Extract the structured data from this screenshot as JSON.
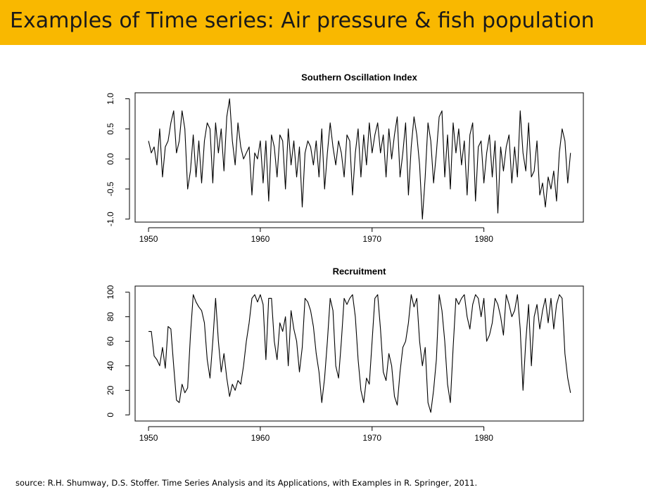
{
  "slide_title": "Examples of Time series: Air pressure & fish population",
  "source": "source: R.H. Shumway, D.S. Stoffer. Time Series Analysis and its Applications, with Examples in R. Springer, 2011.",
  "chart_data": [
    {
      "type": "line",
      "title": "Southern Oscillation Index",
      "color": "#000000",
      "x": [
        1950,
        1950.25,
        1950.5,
        1950.75,
        1951,
        1951.25,
        1951.5,
        1951.75,
        1952,
        1952.25,
        1952.5,
        1952.75,
        1953,
        1953.25,
        1953.5,
        1953.75,
        1954,
        1954.25,
        1954.5,
        1954.75,
        1955,
        1955.25,
        1955.5,
        1955.75,
        1956,
        1956.25,
        1956.5,
        1956.75,
        1957,
        1957.25,
        1957.5,
        1957.75,
        1958,
        1958.25,
        1958.5,
        1958.75,
        1959,
        1959.25,
        1959.5,
        1959.75,
        1960,
        1960.25,
        1960.5,
        1960.75,
        1961,
        1961.25,
        1961.5,
        1961.75,
        1962,
        1962.25,
        1962.5,
        1962.75,
        1963,
        1963.25,
        1963.5,
        1963.75,
        1964,
        1964.25,
        1964.5,
        1964.75,
        1965,
        1965.25,
        1965.5,
        1965.75,
        1966,
        1966.25,
        1966.5,
        1966.75,
        1967,
        1967.25,
        1967.5,
        1967.75,
        1968,
        1968.25,
        1968.5,
        1968.75,
        1969,
        1969.25,
        1969.5,
        1969.75,
        1970,
        1970.25,
        1970.5,
        1970.75,
        1971,
        1971.25,
        1971.5,
        1971.75,
        1972,
        1972.25,
        1972.5,
        1972.75,
        1973,
        1973.25,
        1973.5,
        1973.75,
        1974,
        1974.25,
        1974.5,
        1974.75,
        1975,
        1975.25,
        1975.5,
        1975.75,
        1976,
        1976.25,
        1976.5,
        1976.75,
        1977,
        1977.25,
        1977.5,
        1977.75,
        1978,
        1978.25,
        1978.5,
        1978.75,
        1979,
        1979.25,
        1979.5,
        1979.75,
        1980,
        1980.25,
        1980.5,
        1980.75,
        1981,
        1981.25,
        1981.5,
        1981.75,
        1982,
        1982.25,
        1982.5,
        1982.75,
        1983,
        1983.25,
        1983.5,
        1983.75,
        1984,
        1984.25,
        1984.5,
        1984.75,
        1985,
        1985.25,
        1985.5,
        1985.75,
        1986,
        1986.25,
        1986.5,
        1986.75,
        1987,
        1987.25,
        1987.5,
        1987.75
      ],
      "values": [
        0.3,
        0.1,
        0.2,
        -0.1,
        0.5,
        -0.3,
        0.2,
        0.3,
        0.6,
        0.8,
        0.1,
        0.3,
        0.8,
        0.5,
        -0.5,
        -0.2,
        0.4,
        -0.3,
        0.3,
        -0.4,
        0.3,
        0.6,
        0.5,
        -0.4,
        0.6,
        0.1,
        0.5,
        -0.2,
        0.7,
        1.0,
        0.3,
        -0.1,
        0.6,
        0.2,
        0.0,
        0.1,
        0.2,
        -0.6,
        0.1,
        0.0,
        0.3,
        -0.4,
        0.3,
        -0.7,
        0.4,
        0.2,
        -0.3,
        0.4,
        0.3,
        -0.5,
        0.5,
        -0.1,
        0.3,
        -0.3,
        0.2,
        -0.8,
        0.1,
        0.3,
        0.2,
        -0.1,
        0.3,
        -0.3,
        0.5,
        -0.5,
        0.1,
        0.6,
        0.2,
        -0.1,
        0.3,
        0.1,
        -0.3,
        0.4,
        0.3,
        -0.6,
        0.1,
        0.5,
        -0.3,
        0.4,
        -0.1,
        0.6,
        0.1,
        0.4,
        0.6,
        0.1,
        0.4,
        -0.3,
        0.5,
        0.0,
        0.4,
        0.7,
        -0.3,
        0.1,
        0.6,
        -0.6,
        0.2,
        0.7,
        0.4,
        -0.1,
        -1.0,
        -0.3,
        0.6,
        0.3,
        -0.4,
        0.1,
        0.7,
        0.8,
        -0.3,
        0.4,
        -0.5,
        0.6,
        0.1,
        0.5,
        -0.1,
        0.3,
        -0.6,
        0.4,
        0.6,
        -0.7,
        0.2,
        0.3,
        -0.4,
        0.1,
        0.4,
        -0.3,
        0.3,
        -0.9,
        0.2,
        -0.2,
        0.2,
        0.4,
        -0.4,
        0.2,
        -0.3,
        0.8,
        0.1,
        -0.2,
        0.6,
        -0.3,
        -0.2,
        0.3,
        -0.6,
        -0.4,
        -0.8,
        -0.3,
        -0.5,
        -0.2,
        -0.7,
        0.1,
        0.5,
        0.3,
        -0.4,
        0.1
      ],
      "xlim": [
        1948.8,
        1988.9
      ],
      "xticks": [
        1950,
        1960,
        1970,
        1980
      ],
      "ylim": [
        -1.05,
        1.1
      ],
      "yticks": [
        {
          "value": -1,
          "label": "-1.0"
        },
        -0.5,
        {
          "value": 0,
          "label": "0.0"
        },
        0.5,
        {
          "value": 1,
          "label": "1.0"
        }
      ]
    },
    {
      "type": "line",
      "title": "Recruitment",
      "color": "#000000",
      "x": [
        1950,
        1950.25,
        1950.5,
        1950.75,
        1951,
        1951.25,
        1951.5,
        1951.75,
        1952,
        1952.25,
        1952.5,
        1952.75,
        1953,
        1953.25,
        1953.5,
        1953.75,
        1954,
        1954.25,
        1954.5,
        1954.75,
        1955,
        1955.25,
        1955.5,
        1955.75,
        1956,
        1956.25,
        1956.5,
        1956.75,
        1957,
        1957.25,
        1957.5,
        1957.75,
        1958,
        1958.25,
        1958.5,
        1958.75,
        1959,
        1959.25,
        1959.5,
        1959.75,
        1960,
        1960.25,
        1960.5,
        1960.75,
        1961,
        1961.25,
        1961.5,
        1961.75,
        1962,
        1962.25,
        1962.5,
        1962.75,
        1963,
        1963.25,
        1963.5,
        1963.75,
        1964,
        1964.25,
        1964.5,
        1964.75,
        1965,
        1965.25,
        1965.5,
        1965.75,
        1966,
        1966.25,
        1966.5,
        1966.75,
        1967,
        1967.25,
        1967.5,
        1967.75,
        1968,
        1968.25,
        1968.5,
        1968.75,
        1969,
        1969.25,
        1969.5,
        1969.75,
        1970,
        1970.25,
        1970.5,
        1970.75,
        1971,
        1971.25,
        1971.5,
        1971.75,
        1972,
        1972.25,
        1972.5,
        1972.75,
        1973,
        1973.25,
        1973.5,
        1973.75,
        1974,
        1974.25,
        1974.5,
        1974.75,
        1975,
        1975.25,
        1975.5,
        1975.75,
        1976,
        1976.25,
        1976.5,
        1976.75,
        1977,
        1977.25,
        1977.5,
        1977.75,
        1978,
        1978.25,
        1978.5,
        1978.75,
        1979,
        1979.25,
        1979.5,
        1979.75,
        1980,
        1980.25,
        1980.5,
        1980.75,
        1981,
        1981.25,
        1981.5,
        1981.75,
        1982,
        1982.25,
        1982.5,
        1982.75,
        1983,
        1983.25,
        1983.5,
        1983.75,
        1984,
        1984.25,
        1984.5,
        1984.75,
        1985,
        1985.25,
        1985.5,
        1985.75,
        1986,
        1986.25,
        1986.5,
        1986.75,
        1987,
        1987.25,
        1987.5,
        1987.75
      ],
      "values": [
        68,
        68,
        48,
        45,
        40,
        55,
        38,
        72,
        70,
        40,
        12,
        10,
        25,
        18,
        22,
        65,
        98,
        92,
        88,
        85,
        75,
        45,
        30,
        60,
        95,
        60,
        35,
        50,
        30,
        15,
        25,
        20,
        28,
        25,
        40,
        60,
        75,
        95,
        98,
        92,
        98,
        90,
        45,
        95,
        95,
        60,
        45,
        75,
        68,
        80,
        40,
        85,
        70,
        60,
        35,
        55,
        95,
        92,
        85,
        72,
        50,
        35,
        10,
        30,
        60,
        95,
        85,
        40,
        30,
        60,
        95,
        90,
        95,
        98,
        80,
        45,
        20,
        10,
        30,
        25,
        60,
        95,
        98,
        70,
        35,
        28,
        50,
        40,
        15,
        8,
        35,
        55,
        60,
        75,
        98,
        88,
        95,
        60,
        40,
        55,
        10,
        2,
        20,
        45,
        98,
        85,
        60,
        25,
        10,
        55,
        95,
        90,
        95,
        98,
        80,
        70,
        90,
        98,
        95,
        80,
        95,
        60,
        65,
        75,
        95,
        90,
        80,
        65,
        98,
        90,
        80,
        85,
        98,
        70,
        20,
        60,
        90,
        40,
        80,
        90,
        70,
        85,
        95,
        75,
        95,
        70,
        90,
        98,
        95,
        50,
        30,
        18
      ],
      "xlim": [
        1948.8,
        1988.9
      ],
      "xticks": [
        1950,
        1960,
        1970,
        1980
      ],
      "ylim": [
        -5,
        105
      ],
      "yticks": [
        0,
        20,
        40,
        60,
        80,
        100
      ]
    }
  ]
}
